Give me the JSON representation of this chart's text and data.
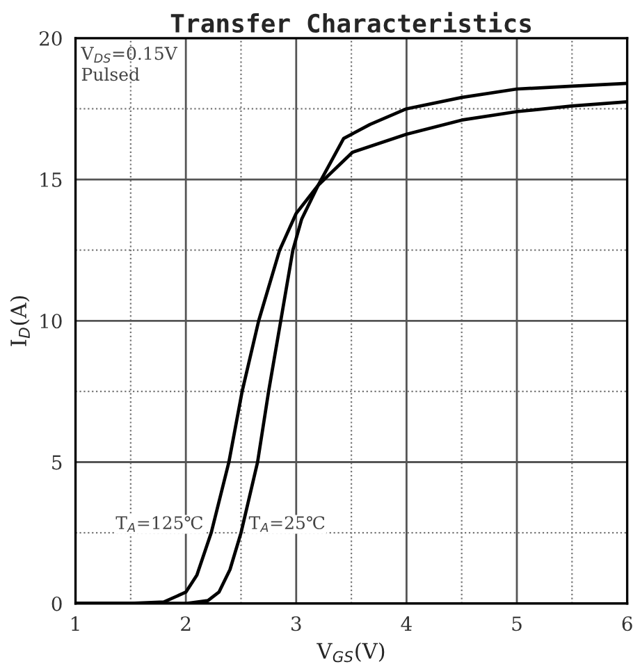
{
  "chart_data": {
    "type": "line",
    "title": "Transfer Characteristics",
    "xlabel": "V$_{GS}$(V)",
    "ylabel": "I$_{D}$(A)",
    "xlim": [
      1,
      6
    ],
    "ylim": [
      0,
      20
    ],
    "xticks": [
      1,
      {
        "value": 1.5,
        "label": null
      },
      2,
      {
        "value": 2.5,
        "label": null
      },
      3,
      {
        "value": 3.5,
        "label": null
      },
      4,
      {
        "value": 4.5,
        "label": null
      },
      5,
      {
        "value": 5.5,
        "label": null
      },
      6
    ],
    "yticks": [
      0,
      {
        "value": 2.5,
        "label": null
      },
      5,
      {
        "value": 7.5,
        "label": null
      },
      10,
      {
        "value": 12.5,
        "label": null
      },
      15,
      {
        "value": 17.5,
        "label": null
      },
      20
    ],
    "grid": true,
    "marker": "none",
    "line_style": "solid",
    "annotations": [
      "V$_{DS}$=0.15V\nPulsed",
      {
        "text": "T$_{A}$=125℃",
        "x": 2.23,
        "y": 2.5
      },
      {
        "text": "T$_{A}$=25℃",
        "x": 2.5,
        "y": 2.5
      }
    ],
    "series": [
      {
        "color": "#000000",
        "x": [
          1.0,
          1.5,
          1.8,
          2.0,
          2.1,
          2.23,
          2.39,
          2.51,
          2.66,
          2.85,
          3.0,
          3.2,
          3.51,
          4.0,
          4.5,
          5.0,
          5.5,
          6.0
        ],
        "values": [
          0,
          0,
          0.05,
          0.4,
          1.0,
          2.5,
          5.0,
          7.5,
          10.0,
          12.5,
          13.8,
          14.8,
          15.96,
          16.6,
          17.1,
          17.4,
          17.6,
          17.75
        ]
      },
      {
        "color": "#000000",
        "x": [
          1.0,
          2.0,
          2.2,
          2.3,
          2.4,
          2.5,
          2.65,
          2.75,
          2.86,
          2.97,
          3.05,
          3.2,
          3.43,
          3.67,
          4.0,
          4.5,
          5.0,
          5.5,
          6.0
        ],
        "values": [
          0,
          0,
          0.1,
          0.4,
          1.2,
          2.5,
          5.0,
          7.5,
          10.0,
          12.5,
          13.6,
          14.8,
          16.45,
          16.95,
          17.5,
          17.9,
          18.2,
          18.3,
          18.4
        ]
      }
    ]
  }
}
